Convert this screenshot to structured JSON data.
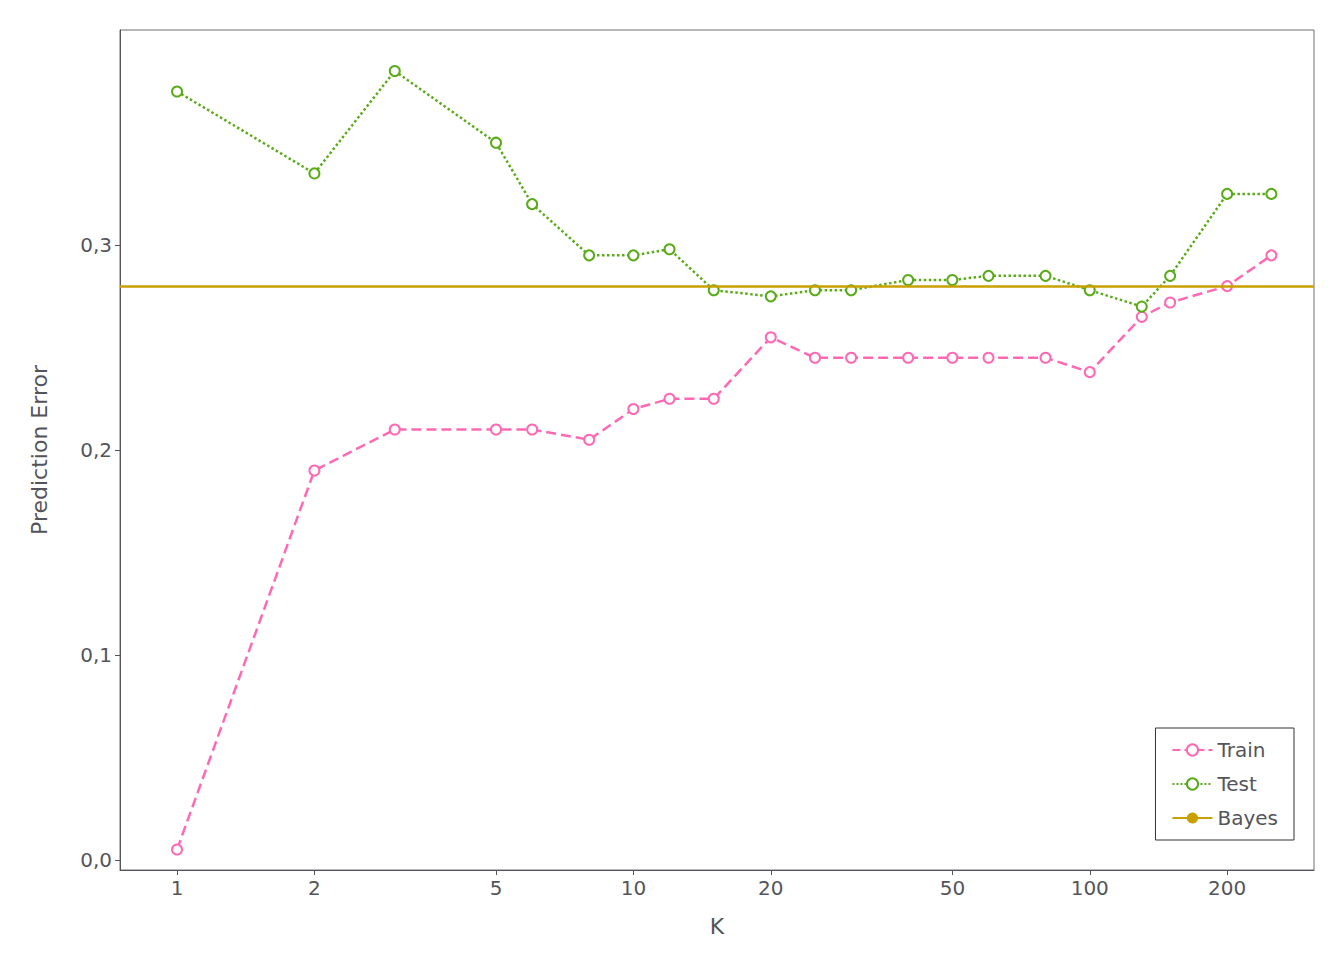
{
  "chart_data": {
    "type": "line",
    "x": [
      1,
      2,
      3,
      5,
      6,
      8,
      10,
      12,
      15,
      20,
      25,
      30,
      40,
      50,
      60,
      80,
      100,
      130,
      150,
      200,
      250
    ],
    "series": [
      {
        "name": "Train",
        "color": "#FF69B4",
        "line_style": "dashed",
        "marker": "circle",
        "values": [
          0.005,
          0.19,
          0.21,
          0.21,
          0.21,
          0.205,
          0.22,
          0.225,
          0.225,
          0.255,
          0.245,
          0.245,
          0.245,
          0.245,
          0.245,
          0.245,
          0.238,
          0.265,
          0.272,
          0.28,
          0.295
        ]
      },
      {
        "name": "Test",
        "color": "#5aab18",
        "line_style": "dotted",
        "marker": "circle",
        "values": [
          0.375,
          0.335,
          0.385,
          0.35,
          0.32,
          0.295,
          0.295,
          0.298,
          0.278,
          0.275,
          0.278,
          0.278,
          0.283,
          0.283,
          0.285,
          0.285,
          0.278,
          0.27,
          0.285,
          0.325,
          0.325
        ]
      },
      {
        "name": "Bayes",
        "color": "#c8a000",
        "type": "hline",
        "line_style": "solid",
        "value": 0.28
      }
    ],
    "xlabel": "K",
    "ylabel": "Prediction Error",
    "log": "x",
    "xlim": [
      0.75,
      310
    ],
    "xticks": [
      1,
      2,
      5,
      10,
      20,
      50,
      100,
      200
    ],
    "ylim": [
      -0.005,
      0.405
    ],
    "yticks": [
      {
        "value": 0.0,
        "label": "0,0"
      },
      {
        "value": 0.1,
        "label": "0,1"
      },
      {
        "value": 0.2,
        "label": "0,2"
      },
      {
        "value": 0.3,
        "label": "0,3"
      }
    ],
    "grid": false,
    "legend": "lower right"
  }
}
